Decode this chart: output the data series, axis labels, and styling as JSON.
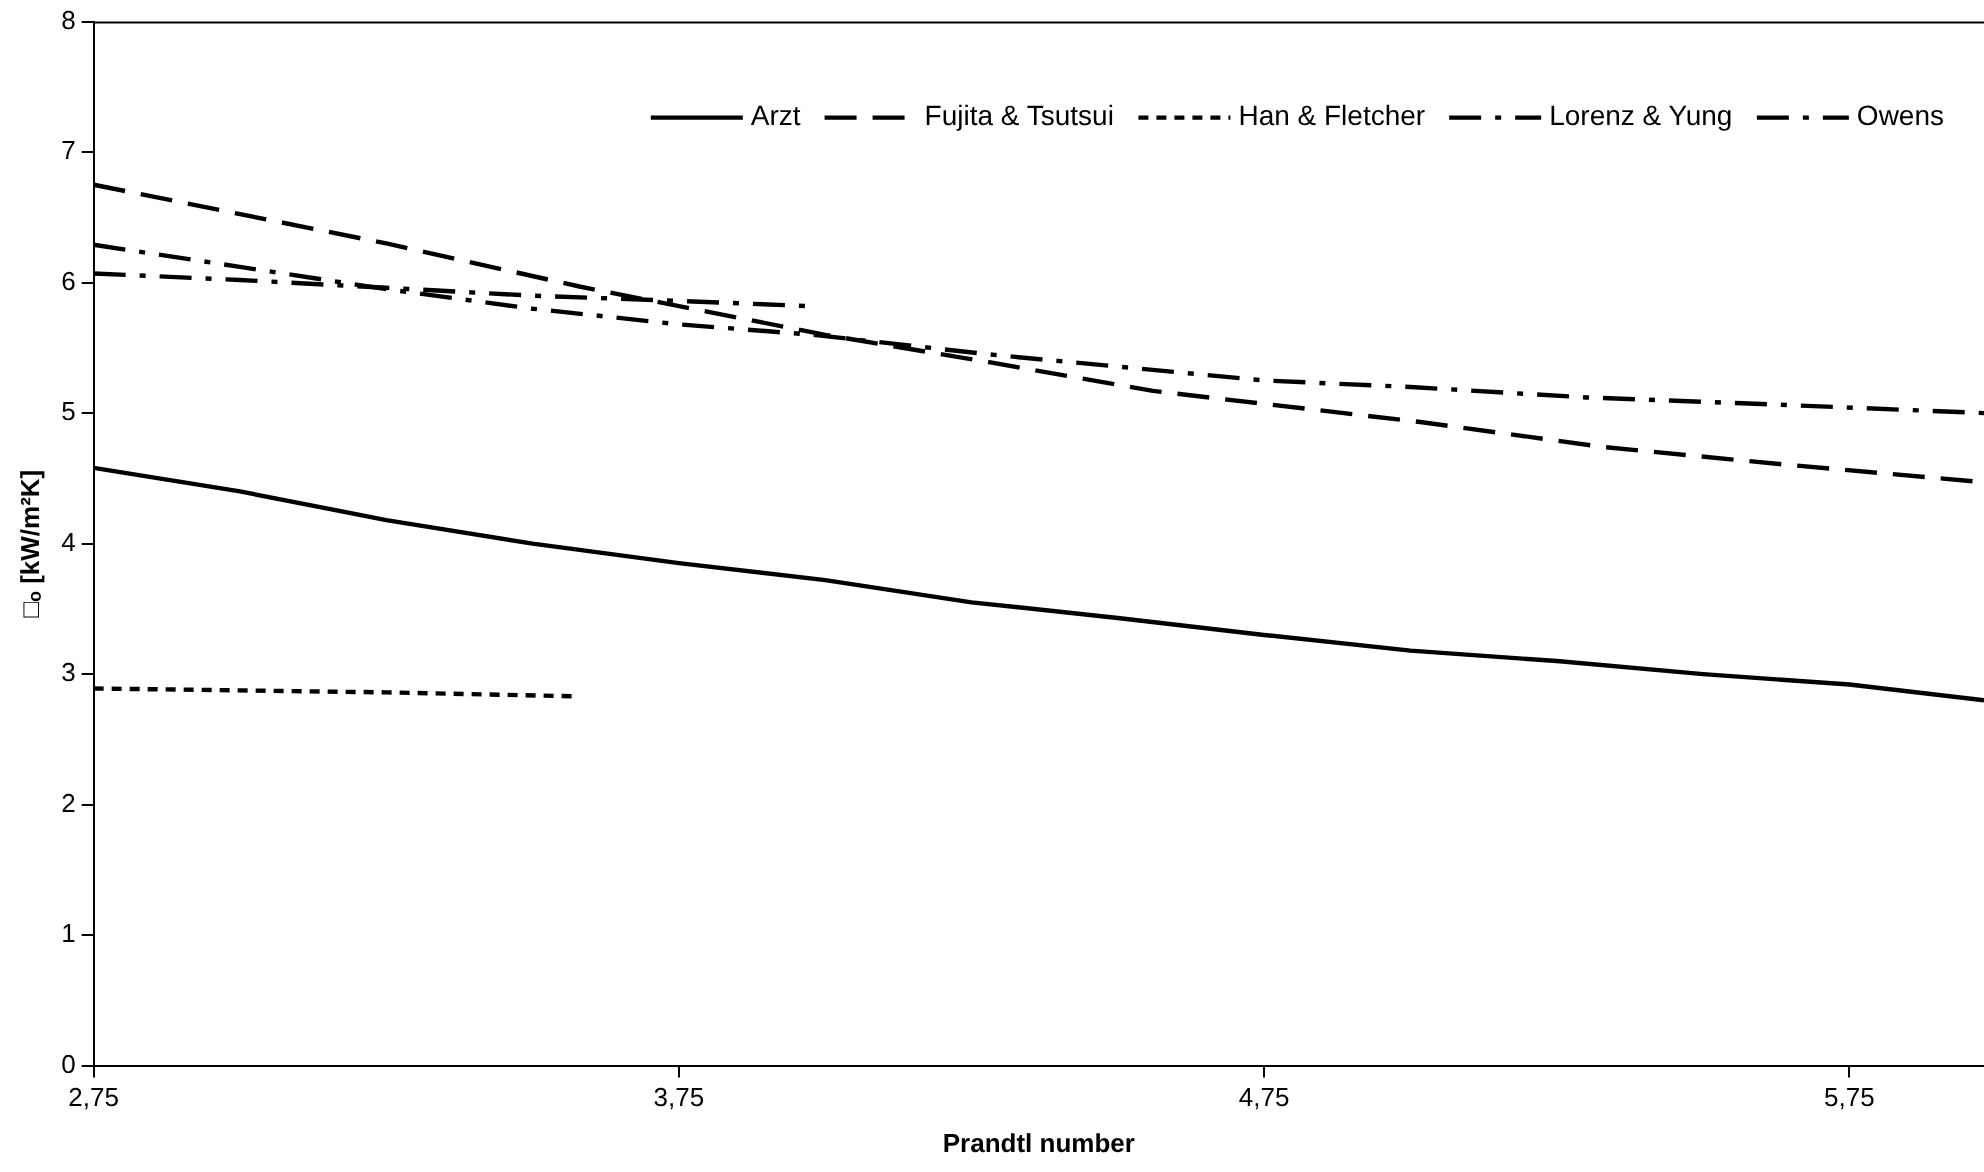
{
  "chart_data": {
    "type": "line",
    "xlabel": "Prandtl number",
    "ylabel": "□ₒ [kW/m²K]",
    "xlim": [
      2.75,
      5.98
    ],
    "xticks": [
      {
        "value": 2.75,
        "label": "2,75"
      },
      {
        "value": 3.75,
        "label": "3,75"
      },
      {
        "value": 4.75,
        "label": "4,75"
      },
      {
        "value": 5.75,
        "label": "5,75"
      }
    ],
    "ylim": [
      0,
      8
    ],
    "yticks": [
      0,
      1,
      2,
      3,
      4,
      5,
      6,
      7,
      8
    ],
    "grid": false,
    "legend": "top right",
    "marker": "none",
    "series": [
      {
        "name": "Arzt",
        "color": "#000000",
        "line_style": "solid",
        "x": [
          2.75,
          3.0,
          3.25,
          3.5,
          3.75,
          4.0,
          4.25,
          4.5,
          4.75,
          5.0,
          5.25,
          5.5,
          5.75,
          5.98
        ],
        "values": [
          4.58,
          4.4,
          4.18,
          4.0,
          3.85,
          3.72,
          3.55,
          3.43,
          3.3,
          3.18,
          3.1,
          3.0,
          2.92,
          2.8
        ]
      },
      {
        "name": "Fujita & Tsutsui",
        "color": "#000000",
        "line_style": "dashed",
        "x": [
          2.75,
          3.25,
          3.58,
          4.0,
          4.28,
          4.56,
          5.02,
          5.33,
          5.63,
          5.98
        ],
        "values": [
          6.75,
          6.3,
          5.97,
          5.6,
          5.39,
          5.17,
          4.93,
          4.74,
          4.61,
          4.47
        ]
      },
      {
        "name": "Han & Fletcher",
        "color": "#000000",
        "line_style": "dotted",
        "x": [
          2.75,
          3.25,
          3.57
        ],
        "values": [
          2.89,
          2.86,
          2.83
        ]
      },
      {
        "name": "Lorenz & Yung",
        "color": "#000000",
        "line_style": "dashdot",
        "x": [
          2.75,
          3.0,
          3.25,
          3.5,
          3.75,
          3.97
        ],
        "values": [
          6.07,
          6.02,
          5.96,
          5.9,
          5.86,
          5.82
        ]
      },
      {
        "name": "Owens",
        "color": "#000000",
        "line_style": "dashdot",
        "x": [
          2.75,
          3.0,
          3.25,
          3.5,
          3.75,
          3.98,
          4.28,
          4.75,
          5.0,
          5.3,
          5.6,
          5.98
        ],
        "values": [
          6.29,
          6.12,
          5.95,
          5.8,
          5.68,
          5.6,
          5.45,
          5.25,
          5.2,
          5.12,
          5.07,
          5.0
        ]
      }
    ]
  }
}
